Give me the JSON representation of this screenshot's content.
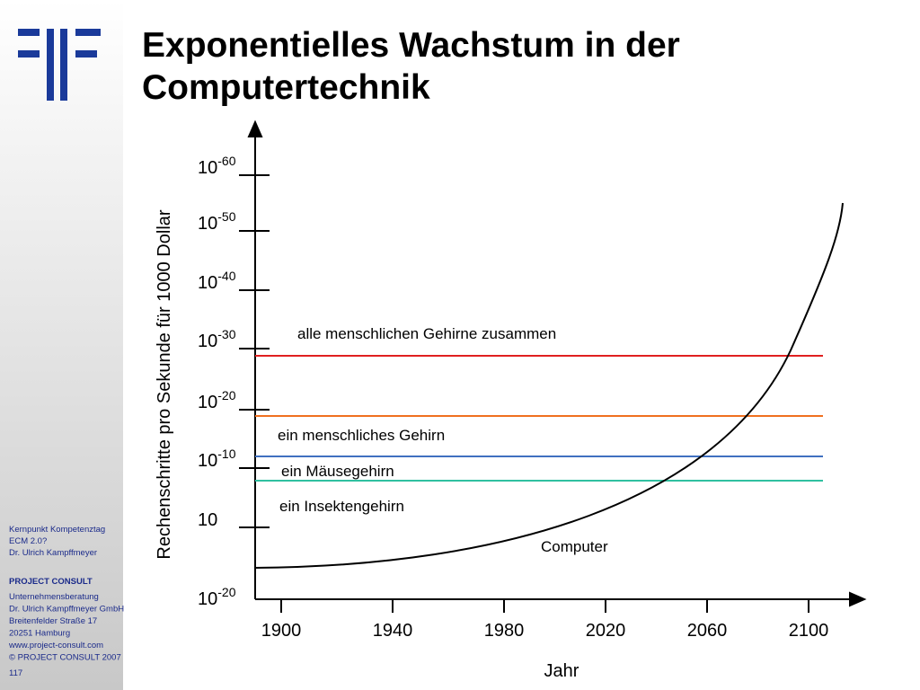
{
  "header": {
    "title_lines": [
      "Exponentielles Wachstum in der",
      "Computertechnik"
    ]
  },
  "sidebar": {
    "event_lines": [
      "Kernpunkt Kompetenztag",
      "ECM 2.0?",
      "Dr. Ulrich Kampffmeyer"
    ],
    "company": "PROJECT   CONSULT",
    "address_lines": [
      "Unternehmensberatung",
      "Dr. Ulrich Kampffmeyer  GmbH",
      "Breitenfelder  Straße 17",
      "20251 Hamburg",
      "www.project-consult.com",
      "© PROJECT CONSULT  2007"
    ],
    "page_number": "117"
  },
  "diagram": {
    "y_axis_label": "Rechenschritte pro Sekunde für 1000 Dollar",
    "x_axis_label": "Jahr",
    "y_ticks": [
      {
        "base": "10",
        "exponent": "-60"
      },
      {
        "base": "10",
        "exponent": "-50"
      },
      {
        "base": "10",
        "exponent": "-40"
      },
      {
        "base": "10",
        "exponent": "-30"
      },
      {
        "base": "10",
        "exponent": "-20"
      },
      {
        "base": "10",
        "exponent": "-10"
      },
      {
        "base": "10"
      }
    ],
    "y_origin": {
      "base": "10",
      "exponent": "-20"
    },
    "x_ticks": [
      "1900",
      "1940",
      "1980",
      "2020",
      "2060",
      "2100"
    ],
    "levels": [
      "alle menschlichen Gehirne zusammen",
      "ein menschliches Gehirn",
      "ein Mäusegehirn",
      "ein Insektengehirn"
    ],
    "curve_label": "Computer"
  }
}
